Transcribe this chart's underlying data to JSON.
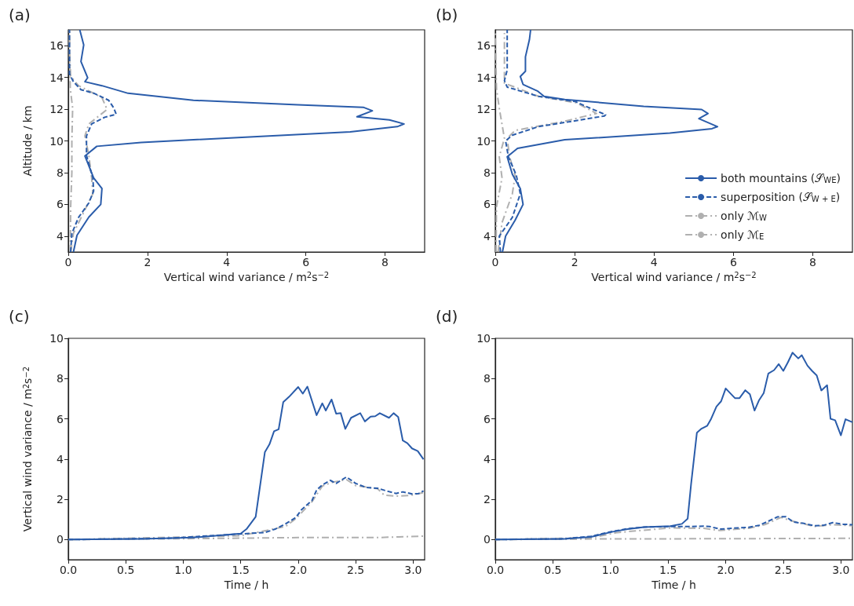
{
  "chart_data": [
    {
      "type": "line",
      "title": "(a)",
      "xlabel": "Vertical wind variance / m$^{2}$s$^{−2}$",
      "ylabel": "Altitude / km",
      "xlim": [
        0,
        9
      ],
      "xticks": [
        0,
        2,
        4,
        6,
        8
      ],
      "ylim": [
        3,
        17
      ],
      "yticks": [
        4,
        6,
        8,
        10,
        12,
        14,
        16
      ],
      "series": [
        {
          "color": "#2a5caa",
          "line_style": "solid",
          "x": [
            0.13,
            0.22,
            0.52,
            0.82,
            0.85,
            0.64,
            0.42,
            0.72,
            1.84,
            4.48,
            7.12,
            8.31,
            8.48,
            8.11,
            7.29,
            7.68,
            7.45,
            5.8,
            3.16,
            1.51,
            0.85,
            0.42,
            0.49,
            0.32,
            0.39,
            0.29
          ],
          "values": [
            3.0,
            4.05,
            5.2,
            6.0,
            7.0,
            7.67,
            9.05,
            9.66,
            9.9,
            10.24,
            10.57,
            10.9,
            11.07,
            11.32,
            11.52,
            11.9,
            12.12,
            12.28,
            12.56,
            13.0,
            13.48,
            13.73,
            13.98,
            15.0,
            16.05,
            17.0
          ]
        },
        {
          "color": "#2a5caa",
          "line_style": "dashed",
          "x": [
            0.06,
            0.09,
            0.26,
            0.52,
            0.64,
            0.62,
            0.46,
            0.46,
            0.59,
            0.92,
            1.21,
            1.15,
            1.02,
            0.65,
            0.32,
            0.13,
            0.03,
            0.03,
            0.03
          ],
          "values": [
            3.0,
            4.18,
            5.18,
            6.09,
            6.84,
            7.67,
            9.08,
            10.32,
            11.07,
            11.49,
            11.68,
            12.07,
            12.56,
            13.0,
            13.23,
            13.73,
            14.22,
            16.8,
            17.0
          ]
        },
        {
          "color": "#b0b0b0",
          "line_style": "dashdot",
          "x": [
            0.06,
            0.13,
            0.39,
            0.62,
            0.59,
            0.52,
            0.42,
            0.52,
            0.98,
            0.85,
            0.26,
            0.06,
            0.03,
            0.03
          ],
          "values": [
            3.0,
            4.18,
            5.5,
            6.67,
            7.67,
            9.08,
            10.32,
            11.07,
            11.98,
            12.73,
            13.48,
            14.06,
            15.8,
            17.0
          ]
        },
        {
          "color": "#b0b0b0",
          "line_style": "dashdot",
          "x": [
            0.05,
            0.06,
            0.09,
            0.09,
            0.11,
            0.05,
            0.03,
            0.03
          ],
          "values": [
            3.0,
            5.84,
            8.0,
            10.0,
            12.07,
            13.3,
            15.8,
            17.0
          ]
        }
      ]
    },
    {
      "type": "line",
      "title": "(b)",
      "xlabel": "Vertical wind variance / m$^{2}$s$^{−2}$",
      "xlim": [
        0,
        9
      ],
      "xticks": [
        0,
        2,
        4,
        6,
        8
      ],
      "ylim": [
        3,
        17
      ],
      "yticks": [
        4,
        6,
        8,
        10,
        12,
        14,
        16
      ],
      "legend": "bottom right",
      "series": [
        {
          "name": "both mountains (𝒮$_{WE}$)",
          "color": "#2a5caa",
          "line_style": "solid",
          "x": [
            0.18,
            0.26,
            0.5,
            0.7,
            0.63,
            0.43,
            0.3,
            0.56,
            1.75,
            4.4,
            5.46,
            5.6,
            5.13,
            5.36,
            5.2,
            3.74,
            1.75,
            1.23,
            1.06,
            0.7,
            0.63,
            0.76,
            0.76,
            0.86,
            0.89
          ],
          "values": [
            3.0,
            4.0,
            5.0,
            6.0,
            7.0,
            7.9,
            9.0,
            9.53,
            10.07,
            10.49,
            10.77,
            10.9,
            11.4,
            11.73,
            11.98,
            12.18,
            12.61,
            12.81,
            13.15,
            13.56,
            14.06,
            14.39,
            15.3,
            16.38,
            17.0
          ]
        },
        {
          "name": "superposition (𝒮$_{W + E}$)",
          "color": "#2a5caa",
          "line_style": "dashed",
          "x": [
            0.13,
            0.1,
            0.43,
            0.63,
            0.53,
            0.33,
            0.26,
            0.43,
            1.09,
            2.15,
            2.75,
            2.78,
            2.28,
            2.02,
            1.09,
            0.3,
            0.23,
            0.3,
            0.3,
            0.3
          ],
          "values": [
            3.0,
            4.0,
            5.18,
            6.67,
            7.83,
            9.0,
            10.0,
            10.36,
            10.9,
            11.32,
            11.57,
            11.65,
            12.18,
            12.48,
            12.81,
            13.39,
            13.8,
            14.47,
            16.8,
            17.0
          ]
        },
        {
          "name": "only ℳ$_{W}$",
          "color": "#b0b0b0",
          "line_style": "dashdot",
          "x": [
            0.07,
            0.17,
            0.43,
            0.5,
            0.36,
            0.3,
            0.5,
            1.75,
            2.55,
            2.05,
            1.09,
            0.23,
            0.23,
            0.23
          ],
          "values": [
            3.0,
            4.85,
            6.67,
            7.83,
            9.0,
            10.16,
            10.66,
            11.24,
            11.73,
            12.4,
            12.81,
            13.64,
            15.0,
            16.8
          ]
        },
        {
          "name": "only ℳ$_{E}$",
          "color": "#b0b0b0",
          "line_style": "dashdot",
          "x": [
            0.02,
            0.03,
            0.17,
            0.1,
            0.23,
            0.1,
            0.03,
            0.0
          ],
          "values": [
            3.0,
            5.84,
            7.67,
            9.0,
            10.16,
            12.07,
            13.3,
            16.8
          ]
        }
      ]
    },
    {
      "type": "line",
      "title": "(c)",
      "xlabel": "Time / h",
      "ylabel": "Vertical wind variance / m$^{2}$s$^{−2}$",
      "xlim": [
        0,
        3.1
      ],
      "xticks": [
        {
          "value": 0,
          "label": "0.0"
        },
        {
          "value": 0.5,
          "label": "0.5"
        },
        {
          "value": 1,
          "label": "1.0"
        },
        {
          "value": 1.5,
          "label": "1.5"
        },
        {
          "value": 2,
          "label": "2.0"
        },
        {
          "value": 2.5,
          "label": "2.5"
        },
        {
          "value": 3,
          "label": "3.0"
        }
      ],
      "ylim": [
        -1,
        10
      ],
      "yticks": [
        0,
        2,
        4,
        6,
        8,
        10
      ],
      "series": [
        {
          "color": "#2a5caa",
          "line_style": "solid",
          "x": [
            0,
            0.64,
            1.09,
            1.5,
            1.55,
            1.63,
            1.71,
            1.75,
            1.79,
            1.83,
            1.87,
            1.92,
            2.0,
            2.04,
            2.08,
            2.16,
            2.21,
            2.24,
            2.29,
            2.33,
            2.37,
            2.41,
            2.46,
            2.54,
            2.58,
            2.63,
            2.67,
            2.71,
            2.79,
            2.83,
            2.87,
            2.91,
            2.95,
            2.99,
            3.04,
            3.09
          ],
          "values": [
            0,
            0.03,
            0.1,
            0.3,
            0.52,
            1.13,
            4.34,
            4.73,
            5.38,
            5.48,
            6.83,
            7.09,
            7.58,
            7.25,
            7.6,
            6.18,
            6.77,
            6.41,
            6.96,
            6.26,
            6.28,
            5.5,
            6.05,
            6.28,
            5.87,
            6.11,
            6.13,
            6.28,
            6.05,
            6.28,
            6.09,
            4.92,
            4.79,
            4.53,
            4.4,
            3.99
          ]
        },
        {
          "color": "#2a5caa",
          "line_style": "dashed",
          "x": [
            0,
            0.86,
            1.5,
            1.71,
            1.8,
            1.89,
            1.98,
            2.03,
            2.12,
            2.16,
            2.21,
            2.28,
            2.33,
            2.42,
            2.5,
            2.59,
            2.69,
            2.78,
            2.85,
            2.91,
            2.99,
            3.05,
            3.09
          ],
          "values": [
            0,
            0.06,
            0.28,
            0.35,
            0.52,
            0.78,
            1.1,
            1.49,
            1.94,
            2.46,
            2.72,
            2.94,
            2.79,
            3.11,
            2.79,
            2.59,
            2.55,
            2.4,
            2.29,
            2.37,
            2.27,
            2.29,
            2.42
          ]
        },
        {
          "color": "#b0b0b0",
          "line_style": "dashdot",
          "x": [
            0,
            1.5,
            1.89,
            1.98,
            2.12,
            2.21,
            2.3,
            2.42,
            2.5,
            2.69,
            2.75,
            2.87,
            2.98,
            3.09
          ],
          "values": [
            0,
            0.19,
            0.65,
            1.04,
            1.88,
            2.66,
            2.85,
            2.98,
            2.68,
            2.53,
            2.2,
            2.16,
            2.2,
            2.33
          ]
        },
        {
          "color": "#b0b0b0",
          "line_style": "dashdot",
          "x": [
            0,
            1.32,
            2.0,
            2.69,
            3.09
          ],
          "values": [
            0,
            0.06,
            0.1,
            0.1,
            0.17
          ]
        }
      ]
    },
    {
      "type": "line",
      "title": "(d)",
      "xlabel": "Time / h",
      "xlim": [
        0,
        3.1
      ],
      "xticks": [
        {
          "value": 0,
          "label": "0.0"
        },
        {
          "value": 0.5,
          "label": "0.5"
        },
        {
          "value": 1,
          "label": "1.0"
        },
        {
          "value": 1.5,
          "label": "1.5"
        },
        {
          "value": 2,
          "label": "2.0"
        },
        {
          "value": 2.5,
          "label": "2.5"
        },
        {
          "value": 3,
          "label": "3.0"
        }
      ],
      "ylim": [
        -1,
        10
      ],
      "yticks": [
        0,
        2,
        4,
        6,
        8,
        10
      ],
      "series": [
        {
          "color": "#2a5caa",
          "line_style": "solid",
          "x": [
            0,
            0.6,
            0.83,
            1.02,
            1.15,
            1.29,
            1.52,
            1.62,
            1.67,
            1.7,
            1.75,
            1.79,
            1.84,
            1.87,
            1.92,
            1.96,
            2.0,
            2.08,
            2.12,
            2.17,
            2.21,
            2.25,
            2.29,
            2.33,
            2.37,
            2.42,
            2.46,
            2.5,
            2.54,
            2.58,
            2.63,
            2.66,
            2.71,
            2.75,
            2.79,
            2.83,
            2.88,
            2.91,
            2.95,
            3.0,
            3.04,
            3.1
          ],
          "values": [
            0,
            0.03,
            0.13,
            0.39,
            0.52,
            0.62,
            0.67,
            0.78,
            1.04,
            2.78,
            5.31,
            5.51,
            5.66,
            5.96,
            6.61,
            6.87,
            7.51,
            7.03,
            7.03,
            7.42,
            7.22,
            6.41,
            6.93,
            7.28,
            8.25,
            8.42,
            8.72,
            8.38,
            8.81,
            9.29,
            9.0,
            9.16,
            8.64,
            8.38,
            8.16,
            7.41,
            7.67,
            6.0,
            5.93,
            5.18,
            5.98,
            5.83
          ]
        },
        {
          "color": "#2a5caa",
          "line_style": "dashed",
          "x": [
            0,
            0.6,
            0.83,
            1.02,
            1.15,
            1.29,
            1.52,
            1.7,
            1.81,
            1.86,
            1.95,
            2.11,
            2.2,
            2.29,
            2.37,
            2.45,
            2.52,
            2.59,
            2.68,
            2.77,
            2.85,
            2.93,
            3.02,
            3.1
          ],
          "values": [
            0,
            0.04,
            0.16,
            0.41,
            0.54,
            0.62,
            0.65,
            0.65,
            0.67,
            0.65,
            0.52,
            0.58,
            0.61,
            0.71,
            0.91,
            1.13,
            1.14,
            0.87,
            0.8,
            0.69,
            0.71,
            0.84,
            0.76,
            0.74
          ]
        },
        {
          "color": "#b0b0b0",
          "line_style": "dashdot",
          "x": [
            0,
            0.83,
            1.06,
            1.52,
            1.81,
            1.95,
            2.2,
            2.34,
            2.48,
            2.57,
            2.77,
            2.93,
            3.1
          ],
          "values": [
            0,
            0.09,
            0.35,
            0.58,
            0.56,
            0.45,
            0.56,
            0.74,
            1.1,
            0.93,
            0.65,
            0.74,
            0.69
          ]
        },
        {
          "color": "#b0b0b0",
          "line_style": "dashdot",
          "x": [
            0,
            0.83,
            1.75,
            3.1
          ],
          "values": [
            0,
            0.03,
            0.04,
            0.06
          ]
        }
      ]
    }
  ]
}
